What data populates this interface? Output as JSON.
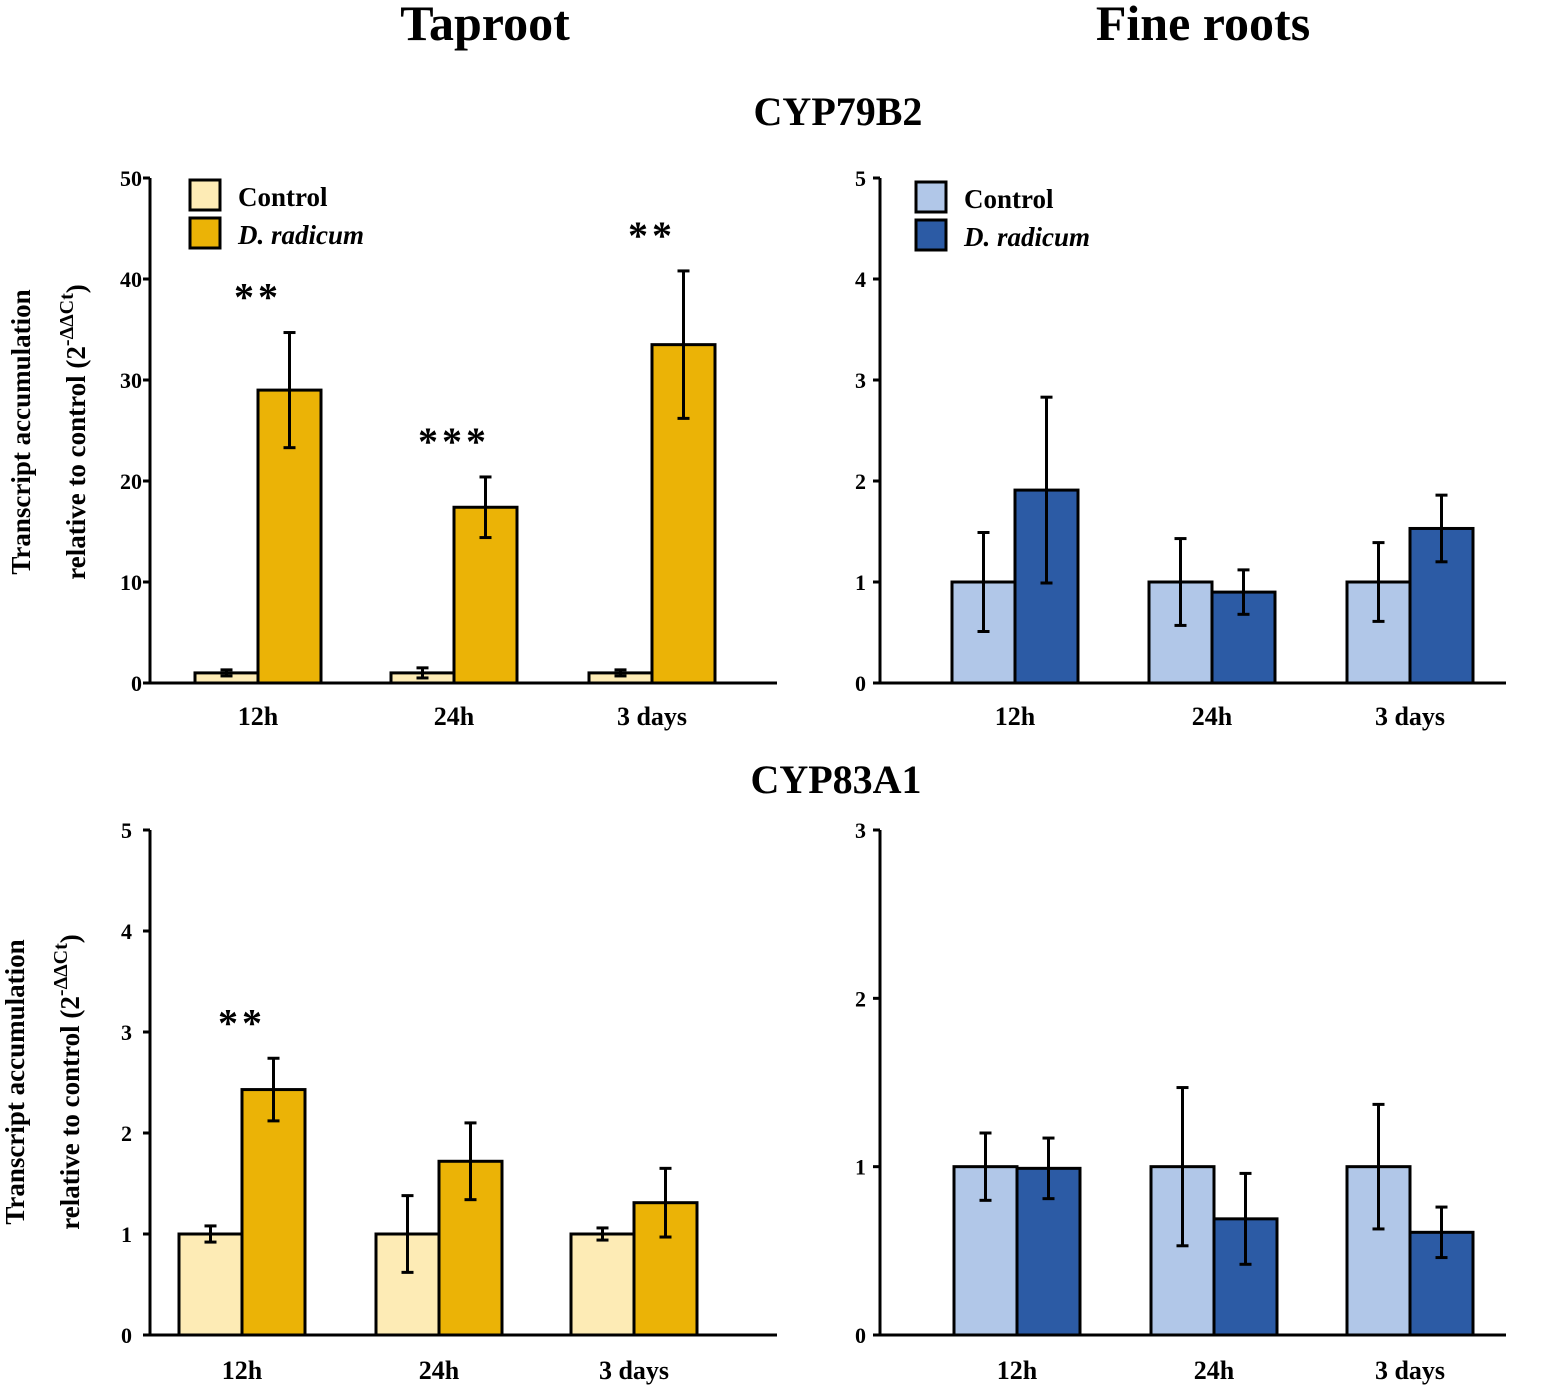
{
  "column_titles": {
    "left": "Taproot",
    "right": "Fine roots"
  },
  "gene_titles": {
    "top": "CYP79B2",
    "bottom": "CYP83A1"
  },
  "y_axis_label": {
    "line1": "Transcript accumulation",
    "line2_text": "relative to control (2",
    "line2_sup": "-ΔΔCt",
    "line2_close": ")"
  },
  "colors": {
    "taproot_control": "#fdebb5",
    "taproot_treated": "#ebb306",
    "fine_control": "#b1c7e8",
    "fine_treated": "#2c5ba5"
  },
  "chart_data": [
    {
      "id": "taproot-cyp79b2",
      "type": "bar",
      "gene": "CYP79B2",
      "tissue": "Taproot",
      "categories": [
        "12h",
        "24h",
        "3 days"
      ],
      "series": [
        {
          "name": "Control",
          "values": [
            1.0,
            1.0,
            1.0
          ],
          "errors": [
            0.3,
            0.5,
            0.3
          ]
        },
        {
          "name": "D. radicum",
          "values": [
            29.0,
            17.4,
            33.5
          ],
          "errors": [
            5.7,
            3.0,
            7.3
          ]
        }
      ],
      "significance": [
        "**",
        "***",
        "**"
      ],
      "ylim": [
        0,
        50
      ],
      "yticks": [
        0,
        10,
        20,
        30,
        40,
        50
      ],
      "legend": true,
      "legend_position": "top-left"
    },
    {
      "id": "fine-cyp79b2",
      "type": "bar",
      "gene": "CYP79B2",
      "tissue": "Fine roots",
      "categories": [
        "12h",
        "24h",
        "3 days"
      ],
      "series": [
        {
          "name": "Control",
          "values": [
            1.0,
            1.0,
            1.0
          ],
          "errors": [
            0.49,
            0.43,
            0.39
          ]
        },
        {
          "name": "D. radicum",
          "values": [
            1.91,
            0.9,
            1.53
          ],
          "errors": [
            0.92,
            0.22,
            0.33
          ]
        }
      ],
      "significance": [
        "",
        "",
        ""
      ],
      "ylim": [
        0,
        5
      ],
      "yticks": [
        0,
        1,
        2,
        3,
        4,
        5
      ],
      "legend": true,
      "legend_position": "top-left"
    },
    {
      "id": "taproot-cyp83a1",
      "type": "bar",
      "gene": "CYP83A1",
      "tissue": "Taproot",
      "categories": [
        "12h",
        "24h",
        "3 days"
      ],
      "series": [
        {
          "name": "Control",
          "values": [
            1.0,
            1.0,
            1.0
          ],
          "errors": [
            0.08,
            0.38,
            0.06
          ]
        },
        {
          "name": "D. radicum",
          "values": [
            2.43,
            1.72,
            1.31
          ],
          "errors": [
            0.31,
            0.38,
            0.34
          ]
        }
      ],
      "significance": [
        "**",
        "",
        ""
      ],
      "ylim": [
        0,
        5
      ],
      "yticks": [
        0,
        1,
        2,
        3,
        4,
        5
      ],
      "legend": false
    },
    {
      "id": "fine-cyp83a1",
      "type": "bar",
      "gene": "CYP83A1",
      "tissue": "Fine roots",
      "categories": [
        "12h",
        "24h",
        "3 days"
      ],
      "series": [
        {
          "name": "Control",
          "values": [
            1.0,
            1.0,
            1.0
          ],
          "errors": [
            0.2,
            0.47,
            0.37
          ]
        },
        {
          "name": "D. radicum",
          "values": [
            0.99,
            0.69,
            0.61
          ],
          "errors": [
            0.18,
            0.27,
            0.15
          ]
        }
      ],
      "significance": [
        "",
        "",
        ""
      ],
      "ylim": [
        0,
        3
      ],
      "yticks": [
        0,
        1,
        2,
        3
      ],
      "legend": false
    }
  ]
}
